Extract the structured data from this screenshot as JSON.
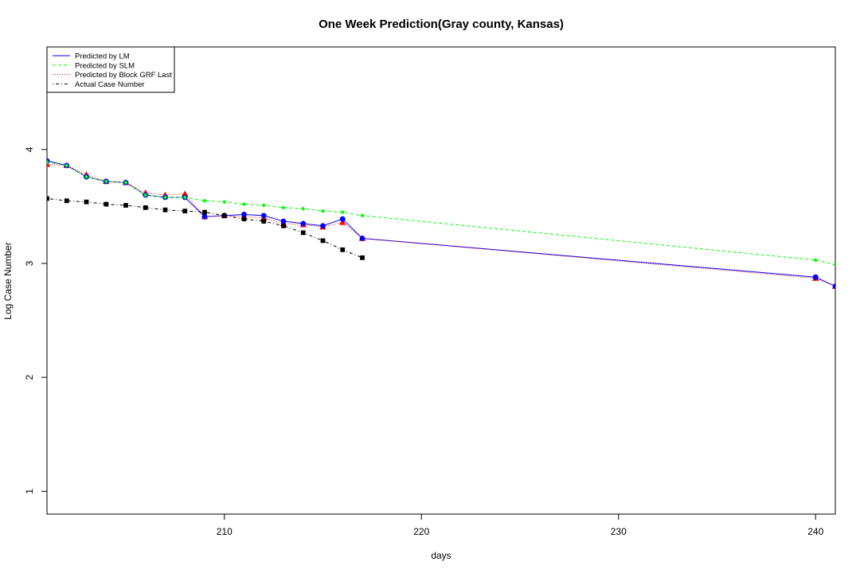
{
  "chart_data": {
    "type": "line",
    "title": "One Week Prediction(Gray county, Kansas)",
    "xlabel": "days",
    "ylabel": "Log Case Number",
    "xlim": [
      201,
      241
    ],
    "ylim": [
      0.8,
      4.9
    ],
    "xticks": [
      210,
      220,
      230,
      240
    ],
    "yticks": [
      1,
      2,
      3,
      4
    ],
    "grid": false,
    "legend_position": "top-left",
    "series": [
      {
        "name": "Predicted by LM",
        "color": "#0000ff",
        "linestyle": "solid",
        "marker": "circle",
        "x": [
          201,
          202,
          203,
          204,
          205,
          206,
          207,
          208,
          209,
          210,
          211,
          212,
          213,
          214,
          215,
          216,
          217,
          240,
          241
        ],
        "y": [
          3.9,
          3.86,
          3.76,
          3.72,
          3.71,
          3.6,
          3.58,
          3.58,
          3.41,
          3.42,
          3.43,
          3.42,
          3.37,
          3.35,
          3.33,
          3.39,
          3.22,
          2.88,
          2.8
        ]
      },
      {
        "name": "Predicted by SLM",
        "color": "#00ff00",
        "linestyle": "dashed",
        "marker": "diamond",
        "x": [
          201,
          202,
          203,
          204,
          205,
          206,
          207,
          208,
          209,
          210,
          211,
          212,
          213,
          214,
          215,
          216,
          217,
          240,
          241
        ],
        "y": [
          3.89,
          3.86,
          3.76,
          3.72,
          3.71,
          3.6,
          3.58,
          3.58,
          3.55,
          3.54,
          3.52,
          3.51,
          3.49,
          3.48,
          3.46,
          3.45,
          3.42,
          3.03,
          2.99
        ]
      },
      {
        "name": "Predicted by Block GRF Last",
        "color": "#ff0000",
        "linestyle": "dotted",
        "marker": "triangle",
        "x": [
          201,
          202,
          203,
          204,
          205,
          206,
          207,
          208,
          209,
          210,
          211,
          212,
          213,
          214,
          215,
          216,
          217,
          240,
          241
        ],
        "y": [
          3.87,
          3.86,
          3.78,
          3.72,
          3.71,
          3.62,
          3.6,
          3.61,
          3.41,
          3.42,
          3.41,
          3.4,
          3.35,
          3.34,
          3.32,
          3.36,
          3.22,
          2.87,
          2.8
        ]
      },
      {
        "name": "Actual Case Number",
        "color": "#000000",
        "linestyle": "dashdot",
        "marker": "square",
        "x": [
          201,
          202,
          203,
          204,
          205,
          206,
          207,
          208,
          209,
          210,
          211,
          212,
          213,
          214,
          215,
          216,
          217
        ],
        "y": [
          3.57,
          3.55,
          3.54,
          3.52,
          3.51,
          3.49,
          3.47,
          3.46,
          3.45,
          3.42,
          3.39,
          3.37,
          3.33,
          3.27,
          3.2,
          3.12,
          3.05
        ]
      }
    ]
  }
}
